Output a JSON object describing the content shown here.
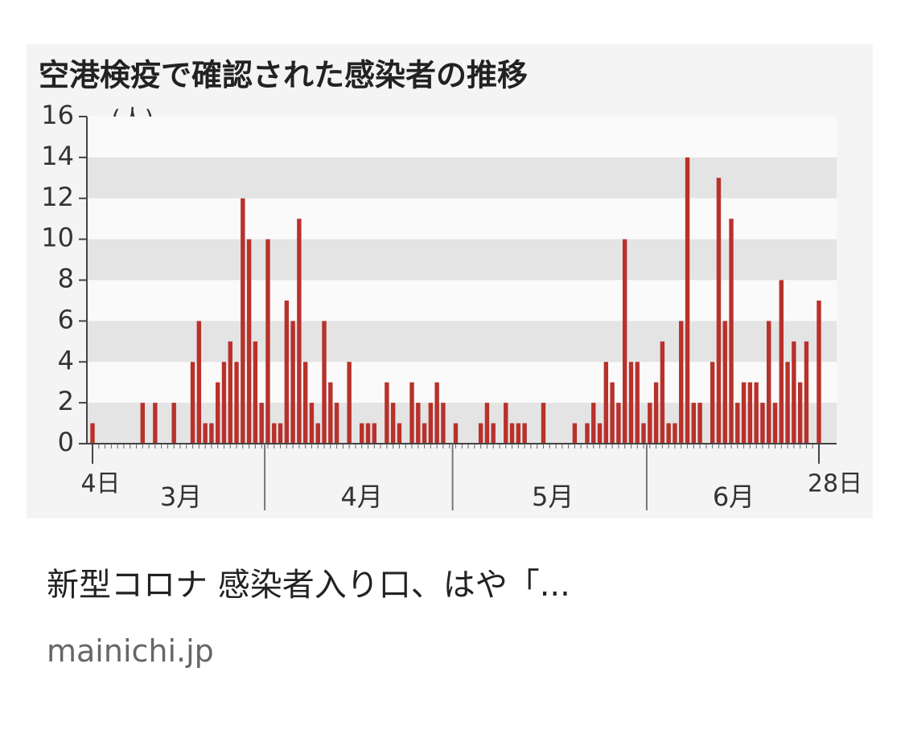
{
  "chart_data": {
    "type": "bar",
    "title": "空港検疫で確認された感染者の推移",
    "y_unit_label": "(人)",
    "categories": [
      "4日",
      null,
      null,
      null,
      null,
      null,
      null,
      null,
      null,
      null,
      null,
      null,
      null,
      null,
      null,
      null,
      null,
      null,
      null,
      null,
      null,
      null,
      null,
      null,
      null,
      null,
      null,
      null,
      null,
      null,
      null,
      null,
      null,
      null,
      null,
      null,
      null,
      null,
      null,
      null,
      null,
      null,
      null,
      null,
      null,
      null,
      null,
      null,
      null,
      null,
      null,
      null,
      null,
      null,
      null,
      null,
      null,
      null,
      null,
      null,
      null,
      null,
      null,
      null,
      null,
      null,
      null,
      null,
      null,
      null,
      null,
      null,
      null,
      null,
      null,
      null,
      null,
      null,
      null,
      null,
      null,
      null,
      null,
      null,
      null,
      null,
      null,
      null,
      null,
      null,
      null,
      null,
      null,
      null,
      null,
      null,
      null,
      null,
      null,
      null,
      null,
      null,
      null,
      null,
      null,
      null,
      null,
      null,
      null,
      null,
      null,
      null,
      null,
      null,
      null,
      null,
      "28日"
    ],
    "month_labels": [
      "3月",
      "4月",
      "5月",
      "6月"
    ],
    "values": [
      1,
      0,
      0,
      0,
      0,
      0,
      0,
      0,
      2,
      0,
      2,
      0,
      0,
      2,
      0,
      0,
      4,
      6,
      1,
      1,
      3,
      4,
      5,
      4,
      12,
      10,
      5,
      2,
      10,
      1,
      1,
      7,
      6,
      11,
      4,
      2,
      1,
      6,
      3,
      2,
      0,
      4,
      0,
      1,
      1,
      1,
      0,
      3,
      2,
      1,
      0,
      3,
      2,
      1,
      2,
      3,
      2,
      0,
      1,
      0,
      0,
      0,
      1,
      2,
      1,
      0,
      2,
      1,
      1,
      1,
      0,
      0,
      2,
      0,
      0,
      0,
      0,
      1,
      0,
      1,
      2,
      1,
      4,
      3,
      2,
      10,
      4,
      4,
      1,
      2,
      3,
      5,
      1,
      1,
      6,
      14,
      2,
      2,
      0,
      4,
      13,
      6,
      11,
      2,
      3,
      3,
      3,
      2,
      6,
      2,
      8,
      4,
      5,
      3,
      5,
      0,
      7
    ],
    "color": "#b8312b",
    "ylim": [
      0,
      16
    ],
    "yticks": [
      0,
      2,
      4,
      6,
      8,
      10,
      12,
      14,
      16
    ],
    "grid": "bands"
  },
  "result": {
    "title": "新型コロナ 感染者入り口、はや「...",
    "source": "mainichi.jp"
  }
}
